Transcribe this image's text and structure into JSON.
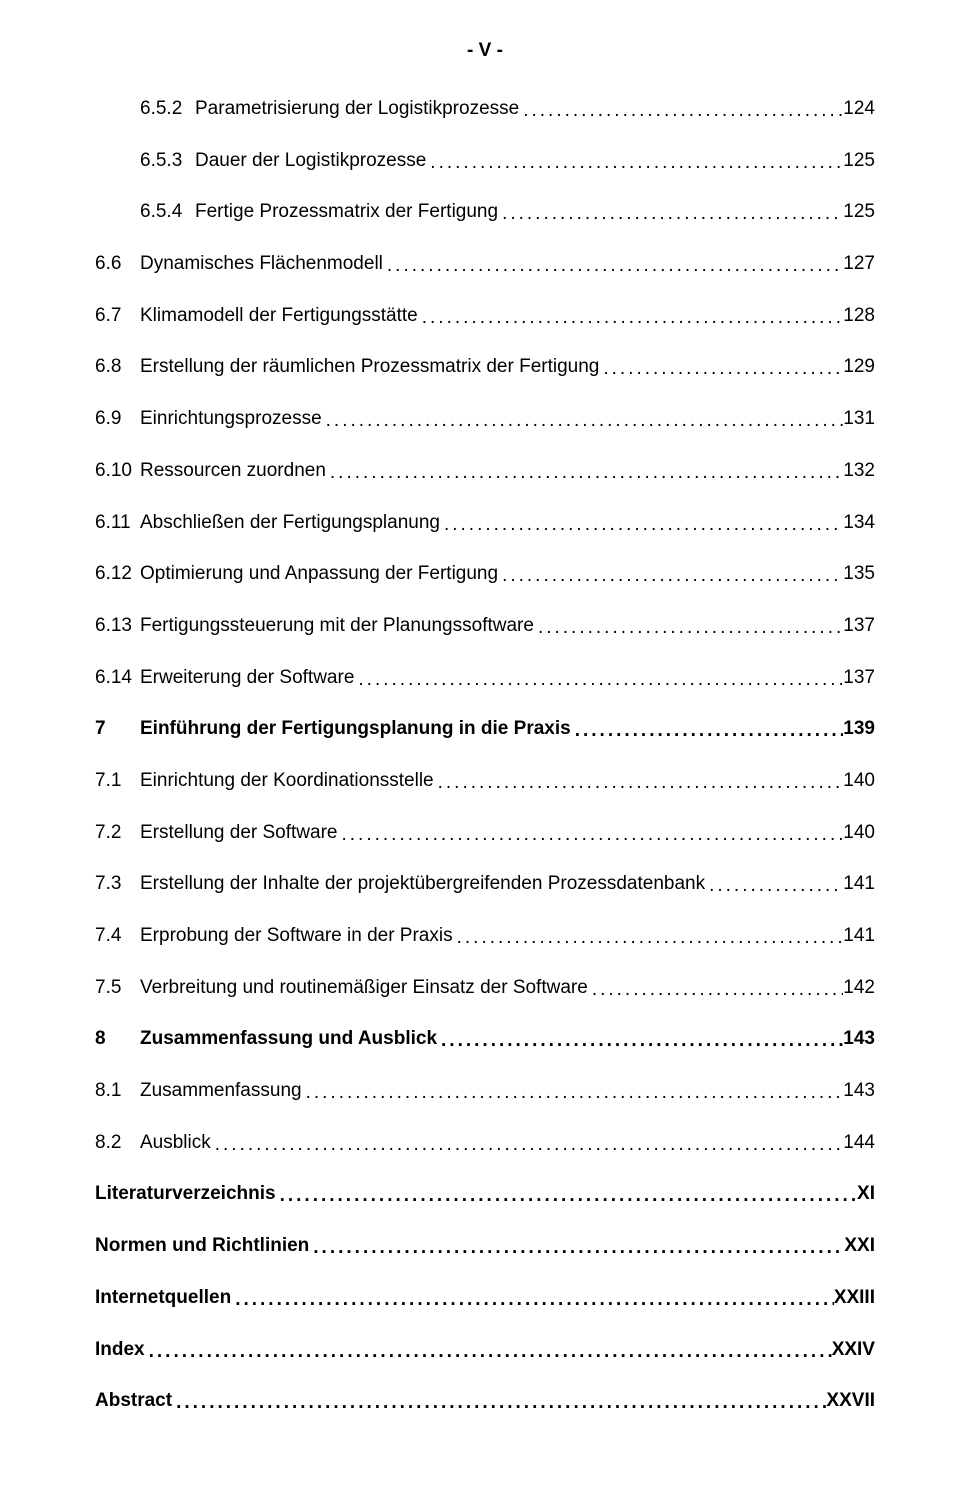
{
  "page_marker": "- V -",
  "entries": [
    {
      "num": "6.5.2",
      "title": "Parametrisierung der Logistikprozesse",
      "page": "124",
      "bold": false,
      "indent": true
    },
    {
      "num": "6.5.3",
      "title": "Dauer der Logistikprozesse",
      "page": "125",
      "bold": false,
      "indent": true
    },
    {
      "num": "6.5.4",
      "title": "Fertige Prozessmatrix der Fertigung",
      "page": "125",
      "bold": false,
      "indent": true
    },
    {
      "num": "6.6",
      "title": "Dynamisches Flächenmodell",
      "page": "127",
      "bold": false,
      "indent": false
    },
    {
      "num": "6.7",
      "title": "Klimamodell der Fertigungsstätte",
      "page": "128",
      "bold": false,
      "indent": false
    },
    {
      "num": "6.8",
      "title": "Erstellung der räumlichen Prozessmatrix der Fertigung",
      "page": "129",
      "bold": false,
      "indent": false
    },
    {
      "num": "6.9",
      "title": "Einrichtungsprozesse",
      "page": "131",
      "bold": false,
      "indent": false
    },
    {
      "num": "6.10",
      "title": "Ressourcen zuordnen",
      "page": "132",
      "bold": false,
      "indent": false
    },
    {
      "num": "6.11",
      "title": "Abschließen der Fertigungsplanung",
      "page": "134",
      "bold": false,
      "indent": false
    },
    {
      "num": "6.12",
      "title": "Optimierung und Anpassung der Fertigung",
      "page": "135",
      "bold": false,
      "indent": false
    },
    {
      "num": "6.13",
      "title": "Fertigungssteuerung mit der Planungssoftware",
      "page": "137",
      "bold": false,
      "indent": false
    },
    {
      "num": "6.14",
      "title": "Erweiterung der Software",
      "page": "137",
      "bold": false,
      "indent": false
    },
    {
      "num": "7",
      "title": "Einführung der Fertigungsplanung in die Praxis",
      "page": "139",
      "bold": true,
      "indent": false
    },
    {
      "num": "7.1",
      "title": "Einrichtung der Koordinationsstelle",
      "page": "140",
      "bold": false,
      "indent": false
    },
    {
      "num": "7.2",
      "title": "Erstellung der Software",
      "page": "140",
      "bold": false,
      "indent": false
    },
    {
      "num": "7.3",
      "title": "Erstellung der Inhalte der projektübergreifenden Prozessdatenbank",
      "page": "141",
      "bold": false,
      "indent": false
    },
    {
      "num": "7.4",
      "title": "Erprobung der Software in der Praxis",
      "page": "141",
      "bold": false,
      "indent": false
    },
    {
      "num": "7.5",
      "title": "Verbreitung und routinemäßiger Einsatz der Software",
      "page": "142",
      "bold": false,
      "indent": false
    },
    {
      "num": "8",
      "title": "Zusammenfassung und Ausblick",
      "page": "143",
      "bold": true,
      "indent": false
    },
    {
      "num": "8.1",
      "title": "Zusammenfassung",
      "page": "143",
      "bold": false,
      "indent": false
    },
    {
      "num": "8.2",
      "title": "Ausblick",
      "page": "144",
      "bold": false,
      "indent": false
    },
    {
      "num": "",
      "title": "Literaturverzeichnis",
      "page": "XI",
      "bold": true,
      "indent": false
    },
    {
      "num": "",
      "title": "Normen und Richtlinien",
      "page": "XXI",
      "bold": true,
      "indent": false
    },
    {
      "num": "",
      "title": "Internetquellen",
      "page": "XXIII",
      "bold": true,
      "indent": false
    },
    {
      "num": "",
      "title": "Index",
      "page": "XXIV",
      "bold": true,
      "indent": false
    },
    {
      "num": "",
      "title": "Abstract",
      "page": "XXVII",
      "bold": true,
      "indent": false
    }
  ]
}
